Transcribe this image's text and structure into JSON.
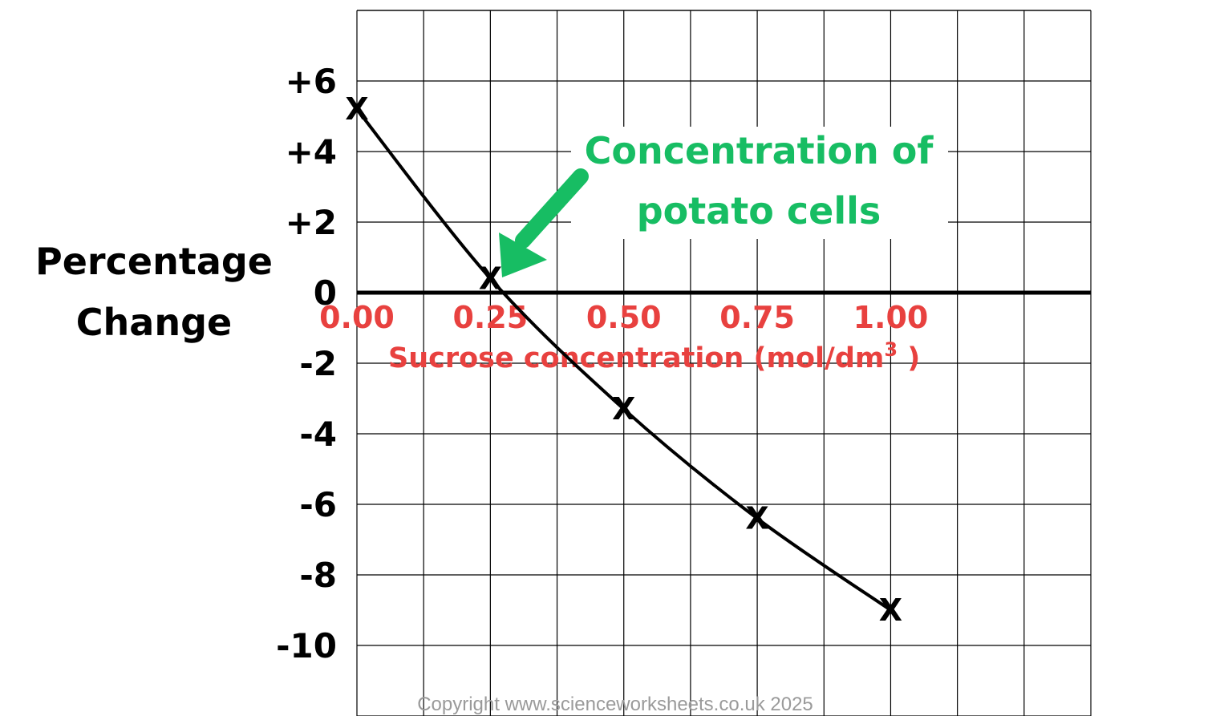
{
  "chart_data": {
    "type": "line",
    "xlabel": "Sucrose concentration (mol/dm",
    "xlabel_superscript": "3",
    "xlabel_suffix": " )",
    "ylabel_line1": "Percentage",
    "ylabel_line2": "Change",
    "x_ticks": [
      "0.00",
      "0.25",
      "0.50",
      "0.75",
      "1.00"
    ],
    "y_ticks": [
      "+6",
      "+4",
      "+2",
      "0",
      "-2",
      "-4",
      "-6",
      "-8",
      "-10"
    ],
    "xlim": [
      0.0,
      1.375
    ],
    "ylim": [
      -12,
      8
    ],
    "grid": true,
    "marker_symbol": "X",
    "series": [
      {
        "x": [
          0.0,
          0.25,
          0.5,
          0.75,
          1.0
        ],
        "y": [
          5.2,
          0.4,
          -3.3,
          -6.4,
          -9.0
        ]
      }
    ],
    "annotation": {
      "line1": "Concentration of",
      "line2": "potato cells",
      "x": 0.27,
      "y": 0
    },
    "colors": {
      "x_text": "#e8413f",
      "annotation": "#17bd63",
      "grid": "#000000",
      "curve": "#000000"
    }
  },
  "copyright": "Copyright www.scienceworksheets.co.uk 2025"
}
